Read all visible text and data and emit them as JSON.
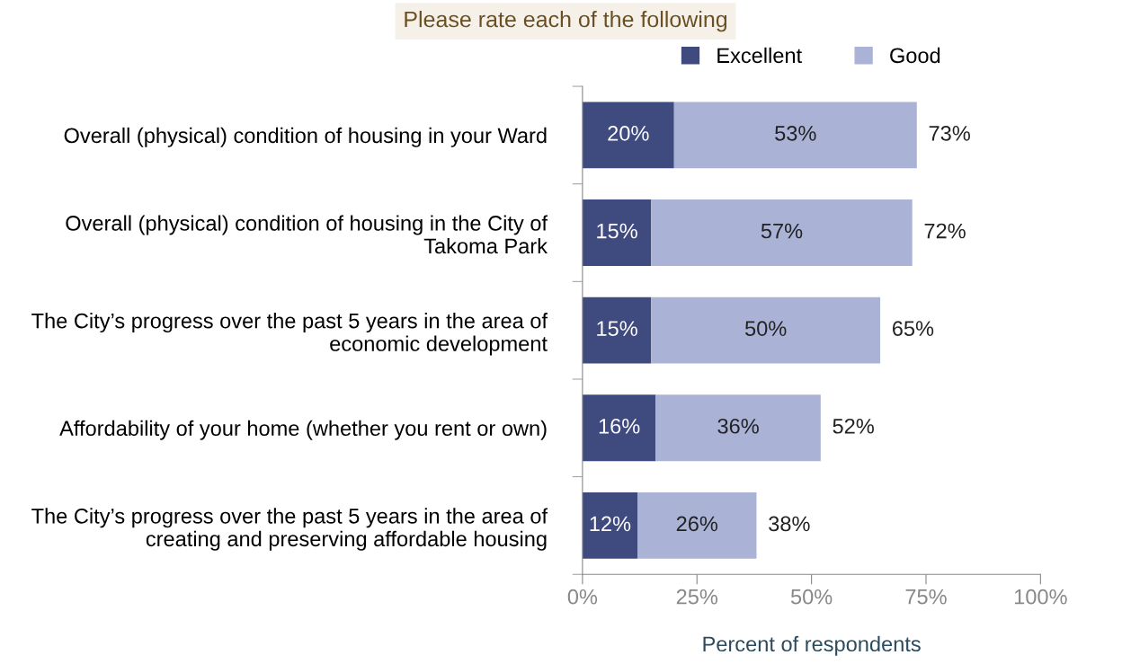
{
  "chart_data": {
    "type": "bar",
    "orientation": "horizontal",
    "stacked": true,
    "title": "Please rate each of the following",
    "xlabel": "Percent of respondents",
    "categories": [
      "Overall (physical) condition of housing in your Ward",
      "Overall (physical) condition of housing in the City of Takoma Park",
      "The City’s progress over the past 5 years in the area of economic development",
      "Affordability of your home (whether you rent or own)",
      "The City’s progress over the past 5 years in the area of creating and preserving affordable housing"
    ],
    "series": [
      {
        "name": "Excellent",
        "color": "#3f4a7f",
        "values": [
          20,
          15,
          15,
          16,
          12
        ],
        "value_labels": [
          "20%",
          "15%",
          "15%",
          "16%",
          "12%"
        ]
      },
      {
        "name": "Good",
        "color": "#aab3d6",
        "values": [
          53,
          57,
          50,
          36,
          26
        ],
        "value_labels": [
          "53%",
          "57%",
          "50%",
          "36%",
          "26%"
        ]
      }
    ],
    "totals": [
      "73%",
      "72%",
      "65%",
      "52%",
      "38%"
    ],
    "xlim": [
      0,
      100
    ],
    "xticks": [
      {
        "value": 0,
        "label": "0%"
      },
      {
        "value": 25,
        "label": "25%"
      },
      {
        "value": 50,
        "label": "50%"
      },
      {
        "value": 75,
        "label": "75%"
      },
      {
        "value": 100,
        "label": "100%"
      }
    ],
    "legend": "top",
    "grid": false
  }
}
